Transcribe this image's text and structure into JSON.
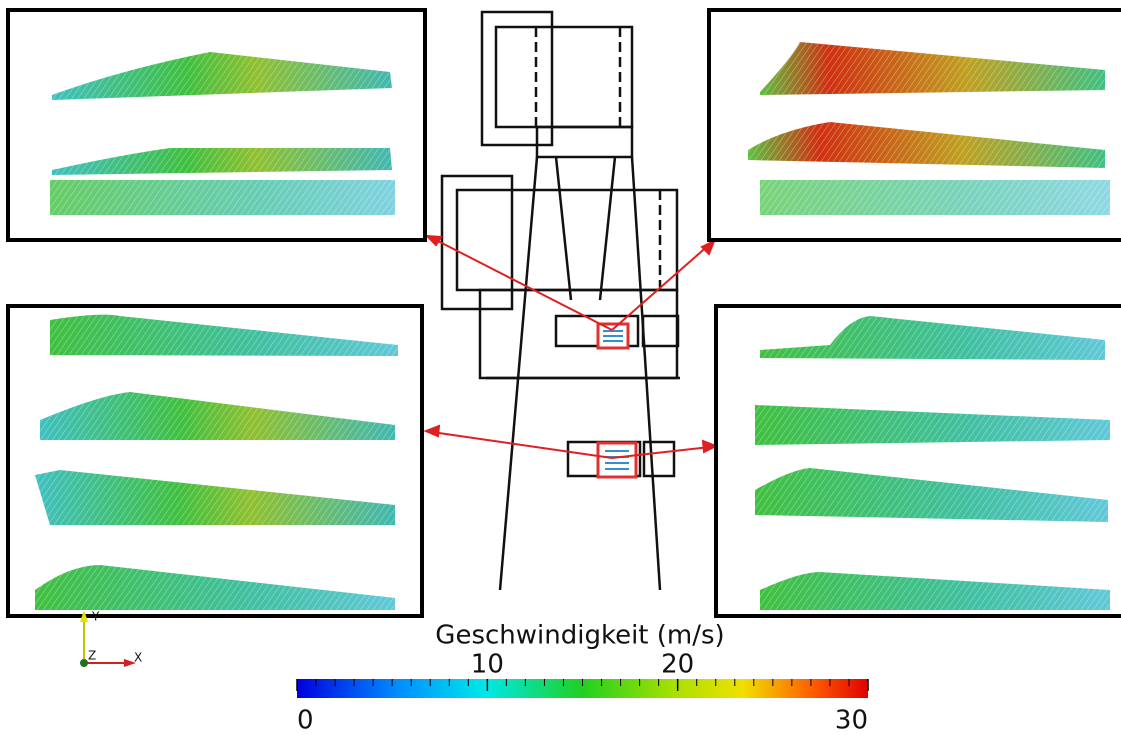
{
  "colorbar": {
    "title": "Geschwindigkeit  (m/s)",
    "range": [
      0,
      30
    ],
    "ticks": [
      0,
      10,
      20,
      30
    ]
  },
  "axes_triad": {
    "y": "Y",
    "z": "Z",
    "x": "X"
  }
}
